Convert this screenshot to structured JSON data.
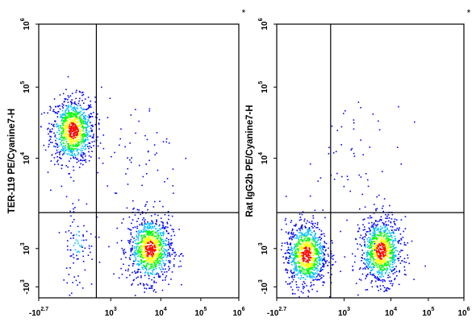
{
  "chart_data": [
    {
      "type": "scatter",
      "subtype": "flow-cytometry-density-dot-plot",
      "ylabel": "TER-119 PE/Cyanine7-H",
      "corner_mark": "*",
      "x_ticks": [
        {
          "base": "-10",
          "exp": "2.7"
        },
        {
          "base": "10",
          "exp": "3"
        },
        {
          "base": "10",
          "exp": "4"
        },
        {
          "base": "10",
          "exp": "5"
        },
        {
          "base": "10",
          "exp": "6"
        }
      ],
      "y_ticks": [
        {
          "base": "-10",
          "exp": "3"
        },
        {
          "base": "10",
          "exp": "3"
        },
        {
          "base": "10",
          "exp": "4"
        },
        {
          "base": "10",
          "exp": "5"
        },
        {
          "base": "10",
          "exp": "6"
        }
      ],
      "scale": "biexponential",
      "quadrant_gate": {
        "x": 700,
        "y": 2500
      },
      "populations": [
        {
          "x_center": 200,
          "y_center": 25000,
          "density": "high"
        },
        {
          "x_center": 6000,
          "y_center": 1000,
          "density": "high"
        },
        {
          "x_center": 300,
          "y_center": 1200,
          "density": "low"
        },
        {
          "x_center": 3000,
          "y_center": 10000,
          "density": "sparse"
        }
      ],
      "colormap": [
        "#0000ff",
        "#00bfff",
        "#00ff00",
        "#ffff00",
        "#ff0000"
      ]
    },
    {
      "type": "scatter",
      "subtype": "flow-cytometry-density-dot-plot",
      "ylabel": "Rat IgG2b PE/Cyanine7-H",
      "corner_mark": "*",
      "x_ticks": [
        {
          "base": "-10",
          "exp": "2.7"
        },
        {
          "base": "10",
          "exp": "3"
        },
        {
          "base": "10",
          "exp": "4"
        },
        {
          "base": "10",
          "exp": "5"
        },
        {
          "base": "10",
          "exp": "6"
        }
      ],
      "y_ticks": [
        {
          "base": "-10",
          "exp": "3"
        },
        {
          "base": "10",
          "exp": "3"
        },
        {
          "base": "10",
          "exp": "4"
        },
        {
          "base": "10",
          "exp": "5"
        },
        {
          "base": "10",
          "exp": "6"
        }
      ],
      "scale": "biexponential",
      "quadrant_gate": {
        "x": 700,
        "y": 2500
      },
      "populations": [
        {
          "x_center": 150,
          "y_center": 700,
          "density": "high"
        },
        {
          "x_center": 6000,
          "y_center": 900,
          "density": "high"
        },
        {
          "x_center": 2000,
          "y_center": 8000,
          "density": "sparse"
        }
      ],
      "colormap": [
        "#0000ff",
        "#00bfff",
        "#00ff00",
        "#ffff00",
        "#ff0000"
      ]
    }
  ]
}
